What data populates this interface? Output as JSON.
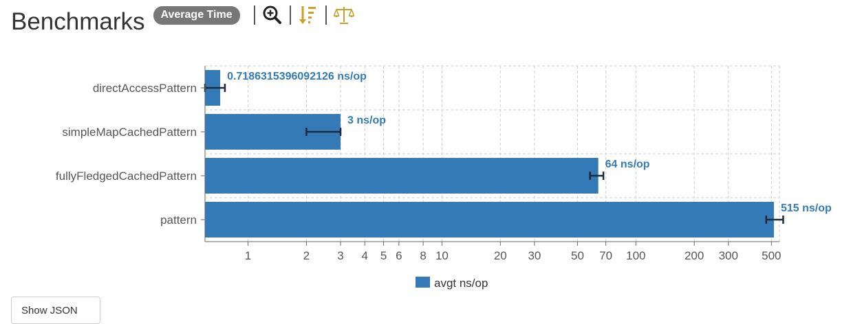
{
  "header": {
    "title": "Benchmarks",
    "mode_badge": "Average Time"
  },
  "toolbar": {
    "icons": [
      "zoom-in-icon",
      "sort-descending-icon",
      "balance-scale-icon"
    ],
    "accent": "#c8a02a"
  },
  "buttons": {
    "show_json": "Show JSON"
  },
  "chart_data": {
    "type": "bar",
    "orientation": "horizontal",
    "x_scale": "log",
    "xlim": [
      0.6,
      550
    ],
    "x_ticks": [
      1,
      2,
      3,
      4,
      5,
      6,
      8,
      10,
      20,
      30,
      50,
      70,
      100,
      200,
      300,
      500
    ],
    "grid": true,
    "categories": [
      "directAccessPattern",
      "simpleMapCachedPattern",
      "fullyFledgedCachedPattern",
      "pattern"
    ],
    "series": [
      {
        "name": "avgt ns/op",
        "color": "#337ab7",
        "values": [
          0.7186315396092126,
          3.0,
          64.0,
          515.0
        ],
        "error_low": [
          0.6,
          2.0,
          58.0,
          470.0
        ],
        "error_high": [
          0.76,
          3.0,
          68.0,
          575.0
        ],
        "labels": [
          "0.7186315396092126 ns/op",
          "3 ns/op",
          "64 ns/op",
          "515 ns/op"
        ]
      }
    ],
    "legend_position": "bottom-center"
  }
}
